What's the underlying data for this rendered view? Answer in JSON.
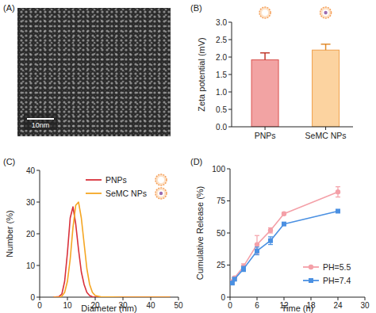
{
  "chart_data": [
    {
      "type": "image",
      "title": "(A)",
      "annotations": [
        "10nm"
      ]
    },
    {
      "type": "bar",
      "title": "(B)",
      "y_label": "Zeta potential (mV)",
      "categories": [
        "PNPs",
        "SeMC NPs"
      ],
      "values": [
        1.92,
        2.2
      ],
      "errors": [
        0.2,
        0.17
      ],
      "colors": [
        "#f2a3a3",
        "#fcd3a0"
      ],
      "ylim": [
        0,
        3
      ],
      "yticks": [
        {
          "value": 0,
          "label": "0.0"
        },
        {
          "value": 0.5,
          "label": "0.5"
        },
        {
          "value": 1,
          "label": "1.0"
        },
        {
          "value": 1.5,
          "label": "1.5"
        },
        {
          "value": 2,
          "label": "2.0"
        },
        {
          "value": 2.5,
          "label": "2.5"
        },
        {
          "value": 3,
          "label": "3.0"
        }
      ]
    },
    {
      "type": "line",
      "title": "(C)",
      "x_label": "Diameter (nm)",
      "y_label": "Number (%)",
      "x": [
        5,
        7,
        8,
        9,
        10,
        11,
        12,
        13,
        14,
        15,
        16,
        17,
        18,
        19,
        20,
        22,
        30,
        40,
        47
      ],
      "series": [
        {
          "name": "PNPs",
          "color": "#d9303a",
          "values": [
            0,
            0.2,
            1,
            5,
            14,
            25,
            28.5,
            23,
            15,
            8,
            4,
            1.5,
            0.5,
            0.1,
            0,
            0,
            0,
            0,
            0
          ]
        },
        {
          "name": "SeMC NPs",
          "color": "#f5a623",
          "values": [
            0,
            0,
            0.3,
            1.5,
            5,
            12,
            22,
            29,
            30,
            25,
            17,
            9,
            4,
            1.5,
            0.5,
            0.1,
            0,
            0,
            0
          ]
        }
      ],
      "xlim": [
        0,
        50
      ],
      "xticks": [
        0,
        10,
        20,
        30,
        40,
        50
      ],
      "ylim": [
        0,
        40
      ],
      "yticks": [
        0,
        10,
        20,
        30,
        40
      ],
      "legend": "upper-right"
    },
    {
      "type": "line",
      "title": "(D)",
      "x_label": "Time (h)",
      "y_label": "Cumulative Release (%)",
      "x": [
        0.5,
        1,
        3,
        6,
        9,
        12,
        24
      ],
      "series": [
        {
          "name": "PH=5.5",
          "color": "#f4a0a8",
          "marker": "circle",
          "values": [
            12,
            15,
            24,
            41,
            52,
            65,
            82
          ],
          "errors": [
            1,
            1,
            2,
            7,
            2,
            1,
            4
          ]
        },
        {
          "name": "PH=7.4",
          "color": "#4a90e2",
          "marker": "square",
          "values": [
            11,
            14,
            22,
            36,
            44,
            57,
            67
          ],
          "errors": [
            1,
            1,
            2,
            3,
            3,
            1,
            1
          ]
        }
      ],
      "xlim": [
        0,
        30
      ],
      "xticks": [
        0,
        6,
        12,
        18,
        24,
        30
      ],
      "ylim": [
        0,
        100
      ],
      "yticks": [
        0,
        25,
        50,
        75,
        100
      ],
      "legend": "lower-right"
    }
  ]
}
